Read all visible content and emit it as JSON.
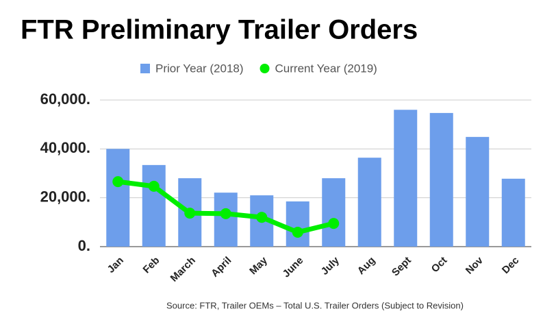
{
  "chart_data": {
    "type": "bar_line",
    "title": "FTR Preliminary Trailer Orders",
    "source": "Source: FTR, Trailer OEMs – Total U.S. Trailer Orders (Subject to Revision)",
    "categories": [
      "Jan",
      "Feb",
      "March",
      "April",
      "May",
      "June",
      "July",
      "Aug",
      "Sept",
      "Oct",
      "Nov",
      "Dec"
    ],
    "series": [
      {
        "name": "Prior Year (2018)",
        "color": "#6d9eeb",
        "kind": "bar",
        "values": [
          40000,
          33400,
          28000,
          22100,
          21000,
          18500,
          28000,
          36400,
          56000,
          54700,
          44900,
          27800
        ]
      },
      {
        "name": "Current Year (2019)",
        "color": "#00ee00",
        "kind": "line",
        "values": [
          26600,
          24700,
          13700,
          13500,
          12000,
          5900,
          9500,
          null,
          null,
          null,
          null,
          null
        ]
      }
    ],
    "ylim": [
      0,
      60000
    ],
    "yticks": [
      {
        "value": 0,
        "label": "0."
      },
      {
        "value": 20000,
        "label": "20,000."
      },
      {
        "value": 40000,
        "label": "40,000."
      },
      {
        "value": 60000,
        "label": "60,000."
      }
    ],
    "grid": true,
    "legend": "top"
  }
}
